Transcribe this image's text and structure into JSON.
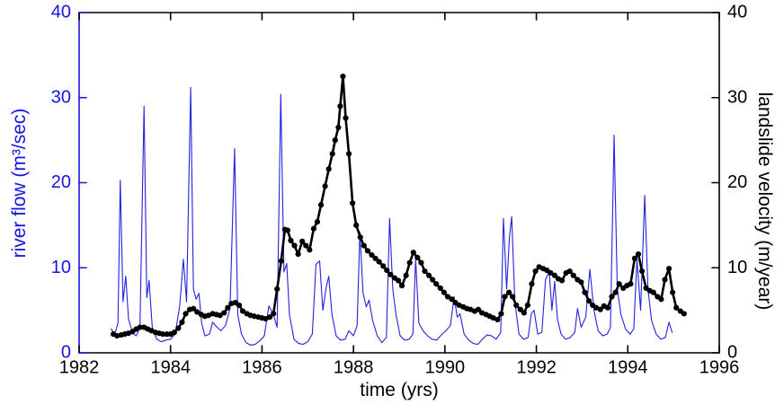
{
  "chart_data": {
    "type": "line",
    "title": "",
    "xlabel": "time (yrs)",
    "ylabel_left": "river flow (m³/sec)",
    "ylabel_right": "landslide velocity (m/year)",
    "xlim": [
      1982,
      1996
    ],
    "ylim_left": [
      0,
      40
    ],
    "ylim_right": [
      0,
      40
    ],
    "xticks": [
      1982,
      1984,
      1986,
      1988,
      1990,
      1992,
      1994,
      1996
    ],
    "yticks_left": [
      0,
      10,
      20,
      30,
      40
    ],
    "yticks_right": [
      0,
      10,
      20,
      30,
      40
    ],
    "grid": false,
    "legend": "none",
    "axis_colors": {
      "frame": "#000000",
      "left": "#1515E6",
      "right": "#000000"
    },
    "series": [
      {
        "name": "river flow",
        "axis": "left",
        "color": "#2222DD",
        "line_width": 1.1,
        "markers": false,
        "points": [
          [
            1982.7,
            2.8
          ],
          [
            1982.78,
            2.2
          ],
          [
            1982.85,
            3.5
          ],
          [
            1982.9,
            20.3
          ],
          [
            1982.96,
            6.0
          ],
          [
            1983.02,
            9.0
          ],
          [
            1983.08,
            4.0
          ],
          [
            1983.17,
            2.3
          ],
          [
            1983.25,
            2.0
          ],
          [
            1983.33,
            3.0
          ],
          [
            1983.42,
            29.0
          ],
          [
            1983.48,
            6.5
          ],
          [
            1983.53,
            8.5
          ],
          [
            1983.6,
            3.0
          ],
          [
            1983.7,
            1.6
          ],
          [
            1983.8,
            1.3
          ],
          [
            1983.9,
            1.5
          ],
          [
            1984.0,
            1.6
          ],
          [
            1984.1,
            2.2
          ],
          [
            1984.2,
            5.5
          ],
          [
            1984.28,
            11.0
          ],
          [
            1984.35,
            6.0
          ],
          [
            1984.44,
            31.2
          ],
          [
            1984.5,
            7.5
          ],
          [
            1984.56,
            6.3
          ],
          [
            1984.62,
            7.0
          ],
          [
            1984.68,
            3.5
          ],
          [
            1984.75,
            2.0
          ],
          [
            1984.85,
            2.2
          ],
          [
            1984.92,
            3.6
          ],
          [
            1985.0,
            3.1
          ],
          [
            1985.1,
            2.6
          ],
          [
            1985.2,
            3.2
          ],
          [
            1985.3,
            5.2
          ],
          [
            1985.4,
            24.0
          ],
          [
            1985.47,
            4.5
          ],
          [
            1985.55,
            2.2
          ],
          [
            1985.65,
            1.2
          ],
          [
            1985.75,
            0.9
          ],
          [
            1985.85,
            1.0
          ],
          [
            1985.95,
            1.4
          ],
          [
            1986.05,
            2.0
          ],
          [
            1986.15,
            5.5
          ],
          [
            1986.25,
            4.5
          ],
          [
            1986.33,
            3.0
          ],
          [
            1986.41,
            30.4
          ],
          [
            1986.48,
            9.5
          ],
          [
            1986.54,
            10.5
          ],
          [
            1986.6,
            4.5
          ],
          [
            1986.7,
            1.6
          ],
          [
            1986.8,
            1.1
          ],
          [
            1986.9,
            1.0
          ],
          [
            1987.0,
            1.3
          ],
          [
            1987.1,
            2.2
          ],
          [
            1987.18,
            10.4
          ],
          [
            1987.26,
            10.8
          ],
          [
            1987.33,
            5.0
          ],
          [
            1987.4,
            7.6
          ],
          [
            1987.46,
            9.0
          ],
          [
            1987.53,
            4.5
          ],
          [
            1987.62,
            2.0
          ],
          [
            1987.72,
            1.5
          ],
          [
            1987.82,
            1.6
          ],
          [
            1987.9,
            2.6
          ],
          [
            1988.0,
            2.0
          ],
          [
            1988.08,
            3.2
          ],
          [
            1988.14,
            14.2
          ],
          [
            1988.21,
            7.0
          ],
          [
            1988.28,
            5.4
          ],
          [
            1988.34,
            6.2
          ],
          [
            1988.42,
            3.8
          ],
          [
            1988.52,
            2.0
          ],
          [
            1988.62,
            1.2
          ],
          [
            1988.72,
            1.8
          ],
          [
            1988.79,
            15.8
          ],
          [
            1988.86,
            7.5
          ],
          [
            1988.93,
            4.5
          ],
          [
            1989.02,
            2.0
          ],
          [
            1989.12,
            1.5
          ],
          [
            1989.22,
            1.6
          ],
          [
            1989.3,
            2.2
          ],
          [
            1989.36,
            11.0
          ],
          [
            1989.43,
            3.5
          ],
          [
            1989.52,
            2.6
          ],
          [
            1989.62,
            2.0
          ],
          [
            1989.72,
            1.6
          ],
          [
            1989.82,
            1.5
          ],
          [
            1989.92,
            2.1
          ],
          [
            1990.02,
            2.6
          ],
          [
            1990.12,
            3.2
          ],
          [
            1990.2,
            6.6
          ],
          [
            1990.27,
            4.2
          ],
          [
            1990.33,
            4.6
          ],
          [
            1990.42,
            2.2
          ],
          [
            1990.52,
            1.5
          ],
          [
            1990.62,
            1.1
          ],
          [
            1990.72,
            1.0
          ],
          [
            1990.82,
            1.6
          ],
          [
            1990.92,
            2.1
          ],
          [
            1991.02,
            2.0
          ],
          [
            1991.12,
            1.6
          ],
          [
            1991.22,
            2.4
          ],
          [
            1991.28,
            15.8
          ],
          [
            1991.35,
            7.5
          ],
          [
            1991.41,
            13.5
          ],
          [
            1991.46,
            16.0
          ],
          [
            1991.53,
            6.0
          ],
          [
            1991.62,
            2.2
          ],
          [
            1991.72,
            1.6
          ],
          [
            1991.82,
            1.8
          ],
          [
            1991.89,
            4.6
          ],
          [
            1991.95,
            5.0
          ],
          [
            1992.03,
            2.2
          ],
          [
            1992.12,
            2.4
          ],
          [
            1992.2,
            8.6
          ],
          [
            1992.28,
            9.6
          ],
          [
            1992.34,
            5.0
          ],
          [
            1992.4,
            8.4
          ],
          [
            1992.46,
            4.0
          ],
          [
            1992.54,
            2.2
          ],
          [
            1992.64,
            1.6
          ],
          [
            1992.74,
            1.8
          ],
          [
            1992.84,
            2.4
          ],
          [
            1992.9,
            5.2
          ],
          [
            1992.98,
            3.0
          ],
          [
            1993.08,
            4.2
          ],
          [
            1993.17,
            9.8
          ],
          [
            1993.26,
            5.0
          ],
          [
            1993.35,
            2.6
          ],
          [
            1993.45,
            2.0
          ],
          [
            1993.55,
            2.2
          ],
          [
            1993.62,
            3.0
          ],
          [
            1993.7,
            25.6
          ],
          [
            1993.77,
            7.5
          ],
          [
            1993.85,
            4.5
          ],
          [
            1993.95,
            2.8
          ],
          [
            1994.05,
            2.2
          ],
          [
            1994.13,
            2.8
          ],
          [
            1994.2,
            11.0
          ],
          [
            1994.28,
            5.0
          ],
          [
            1994.37,
            18.5
          ],
          [
            1994.44,
            7.5
          ],
          [
            1994.52,
            3.8
          ],
          [
            1994.62,
            2.2
          ],
          [
            1994.72,
            1.6
          ],
          [
            1994.82,
            1.8
          ],
          [
            1994.9,
            3.6
          ],
          [
            1994.97,
            2.4
          ]
        ]
      },
      {
        "name": "landslide velocity",
        "axis": "right",
        "color": "#000000",
        "line_width": 2.6,
        "markers": true,
        "marker_radius": 3.1,
        "points": [
          [
            1982.75,
            2.2
          ],
          [
            1982.83,
            2.0
          ],
          [
            1982.92,
            2.1
          ],
          [
            1983.0,
            2.2
          ],
          [
            1983.08,
            2.3
          ],
          [
            1983.17,
            2.5
          ],
          [
            1983.25,
            2.8
          ],
          [
            1983.33,
            3.0
          ],
          [
            1983.42,
            3.0
          ],
          [
            1983.5,
            2.8
          ],
          [
            1983.58,
            2.6
          ],
          [
            1983.67,
            2.4
          ],
          [
            1983.75,
            2.3
          ],
          [
            1983.83,
            2.2
          ],
          [
            1983.92,
            2.2
          ],
          [
            1984.0,
            2.2
          ],
          [
            1984.08,
            2.4
          ],
          [
            1984.17,
            2.9
          ],
          [
            1984.25,
            3.6
          ],
          [
            1984.33,
            4.6
          ],
          [
            1984.42,
            5.1
          ],
          [
            1984.5,
            5.2
          ],
          [
            1984.58,
            4.8
          ],
          [
            1984.67,
            4.5
          ],
          [
            1984.75,
            4.3
          ],
          [
            1984.83,
            4.4
          ],
          [
            1984.92,
            4.6
          ],
          [
            1985.0,
            4.5
          ],
          [
            1985.08,
            4.4
          ],
          [
            1985.17,
            4.7
          ],
          [
            1985.25,
            5.3
          ],
          [
            1985.33,
            5.8
          ],
          [
            1985.42,
            5.9
          ],
          [
            1985.5,
            5.6
          ],
          [
            1985.58,
            4.9
          ],
          [
            1985.67,
            4.6
          ],
          [
            1985.75,
            4.4
          ],
          [
            1985.83,
            4.3
          ],
          [
            1985.92,
            4.2
          ],
          [
            1986.0,
            4.1
          ],
          [
            1986.08,
            4.0
          ],
          [
            1986.17,
            4.2
          ],
          [
            1986.25,
            4.6
          ],
          [
            1986.33,
            7.5
          ],
          [
            1986.42,
            10.8
          ],
          [
            1986.5,
            14.5
          ],
          [
            1986.56,
            14.4
          ],
          [
            1986.63,
            13.2
          ],
          [
            1986.71,
            12.6
          ],
          [
            1986.79,
            11.6
          ],
          [
            1986.88,
            13.1
          ],
          [
            1986.96,
            12.6
          ],
          [
            1987.04,
            12.1
          ],
          [
            1987.13,
            14.6
          ],
          [
            1987.21,
            15.4
          ],
          [
            1987.29,
            17.4
          ],
          [
            1987.38,
            19.6
          ],
          [
            1987.46,
            21.6
          ],
          [
            1987.54,
            23.4
          ],
          [
            1987.6,
            25.0
          ],
          [
            1987.67,
            26.5
          ],
          [
            1987.71,
            29.0
          ],
          [
            1987.77,
            32.5
          ],
          [
            1987.83,
            27.6
          ],
          [
            1987.9,
            23.4
          ],
          [
            1987.98,
            17.6
          ],
          [
            1988.06,
            15.0
          ],
          [
            1988.15,
            13.6
          ],
          [
            1988.23,
            12.6
          ],
          [
            1988.31,
            12.0
          ],
          [
            1988.4,
            11.5
          ],
          [
            1988.48,
            11.1
          ],
          [
            1988.56,
            10.7
          ],
          [
            1988.65,
            10.2
          ],
          [
            1988.73,
            9.7
          ],
          [
            1988.81,
            9.2
          ],
          [
            1988.9,
            8.8
          ],
          [
            1988.98,
            8.5
          ],
          [
            1989.06,
            7.9
          ],
          [
            1989.15,
            9.1
          ],
          [
            1989.23,
            10.6
          ],
          [
            1989.31,
            11.8
          ],
          [
            1989.4,
            11.2
          ],
          [
            1989.48,
            10.6
          ],
          [
            1989.56,
            9.6
          ],
          [
            1989.65,
            9.1
          ],
          [
            1989.73,
            8.6
          ],
          [
            1989.81,
            8.1
          ],
          [
            1989.9,
            7.6
          ],
          [
            1989.98,
            7.1
          ],
          [
            1990.06,
            6.6
          ],
          [
            1990.15,
            6.3
          ],
          [
            1990.23,
            5.9
          ],
          [
            1990.31,
            5.6
          ],
          [
            1990.4,
            5.4
          ],
          [
            1990.48,
            5.2
          ],
          [
            1990.56,
            5.1
          ],
          [
            1990.65,
            4.9
          ],
          [
            1990.73,
            5.1
          ],
          [
            1990.81,
            4.7
          ],
          [
            1990.9,
            4.5
          ],
          [
            1990.98,
            4.3
          ],
          [
            1991.06,
            4.1
          ],
          [
            1991.15,
            3.9
          ],
          [
            1991.23,
            4.6
          ],
          [
            1991.31,
            6.6
          ],
          [
            1991.4,
            7.1
          ],
          [
            1991.48,
            6.6
          ],
          [
            1991.56,
            5.6
          ],
          [
            1991.65,
            5.1
          ],
          [
            1991.73,
            4.7
          ],
          [
            1991.81,
            5.6
          ],
          [
            1991.9,
            8.1
          ],
          [
            1991.98,
            9.6
          ],
          [
            1992.06,
            10.1
          ],
          [
            1992.15,
            9.9
          ],
          [
            1992.23,
            9.7
          ],
          [
            1992.31,
            9.4
          ],
          [
            1992.4,
            9.1
          ],
          [
            1992.48,
            8.7
          ],
          [
            1992.56,
            8.5
          ],
          [
            1992.65,
            9.4
          ],
          [
            1992.73,
            9.6
          ],
          [
            1992.81,
            9.1
          ],
          [
            1992.9,
            8.6
          ],
          [
            1992.98,
            8.3
          ],
          [
            1993.06,
            7.1
          ],
          [
            1993.15,
            6.1
          ],
          [
            1993.23,
            5.6
          ],
          [
            1993.31,
            5.3
          ],
          [
            1993.4,
            5.1
          ],
          [
            1993.48,
            5.5
          ],
          [
            1993.56,
            5.3
          ],
          [
            1993.65,
            6.6
          ],
          [
            1993.73,
            7.1
          ],
          [
            1993.81,
            8.1
          ],
          [
            1993.9,
            7.6
          ],
          [
            1993.98,
            7.9
          ],
          [
            1994.06,
            8.1
          ],
          [
            1994.15,
            11.1
          ],
          [
            1994.23,
            11.6
          ],
          [
            1994.31,
            9.6
          ],
          [
            1994.4,
            7.6
          ],
          [
            1994.48,
            7.3
          ],
          [
            1994.56,
            7.1
          ],
          [
            1994.65,
            6.6
          ],
          [
            1994.73,
            6.3
          ],
          [
            1994.81,
            8.6
          ],
          [
            1994.9,
            9.9
          ],
          [
            1994.98,
            7.1
          ],
          [
            1995.06,
            5.3
          ],
          [
            1995.15,
            4.9
          ],
          [
            1995.23,
            4.6
          ]
        ]
      }
    ]
  }
}
